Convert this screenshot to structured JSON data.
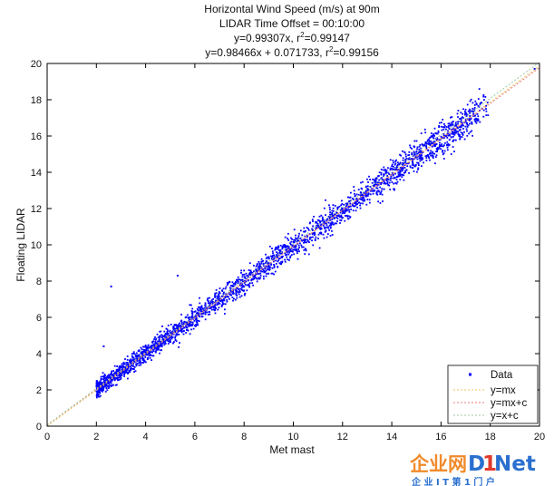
{
  "chart_data": {
    "type": "scatter",
    "title_lines": [
      "Horizontal Wind Speed (m/s) at 90m",
      "LIDAR Time Offset = 00:10:00"
    ],
    "fit1": {
      "prefix": "y=0.99307x, r",
      "sup": "2",
      "suffix": "=0.99147"
    },
    "fit2": {
      "prefix": "y=0.98466x + 0.071733, r",
      "sup": "2",
      "suffix": "=0.99156"
    },
    "xlabel": "Met mast",
    "ylabel": "Floating LIDAR",
    "xlim": [
      0,
      20
    ],
    "ylim": [
      0,
      20
    ],
    "xticks": [
      0,
      2,
      4,
      6,
      8,
      10,
      12,
      14,
      16,
      18,
      20
    ],
    "yticks": [
      0,
      2,
      4,
      6,
      8,
      10,
      12,
      14,
      16,
      18,
      20
    ],
    "grid": false,
    "legend_position": "bottom-right",
    "series": [
      {
        "name": "Data",
        "kind": "points",
        "color": "#0000ff",
        "x_range": [
          2,
          20
        ],
        "slope": 0.98466,
        "intercept": 0.071733
      },
      {
        "name": "y=mx",
        "kind": "line",
        "color": "#f0c060",
        "slope": 0.99307,
        "intercept": 0
      },
      {
        "name": "y=mx+c",
        "kind": "line",
        "color": "#e87878",
        "slope": 0.98466,
        "intercept": 0.071733
      },
      {
        "name": "y=x+c",
        "kind": "line",
        "color": "#a0c8a0",
        "slope": 1,
        "intercept": 0.071733
      }
    ],
    "outliers": [
      {
        "x": 2.6,
        "y": 7.7
      },
      {
        "x": 5.3,
        "y": 8.3
      },
      {
        "x": 2.3,
        "y": 4.4
      },
      {
        "x": 19.8,
        "y": 19.7
      }
    ]
  },
  "watermark": {
    "cn_main": "企业网",
    "brand_d": "D",
    "brand_i": "1",
    "brand_net": "Net",
    "cn_sub": "企 业 I T 第 1 门 户"
  }
}
